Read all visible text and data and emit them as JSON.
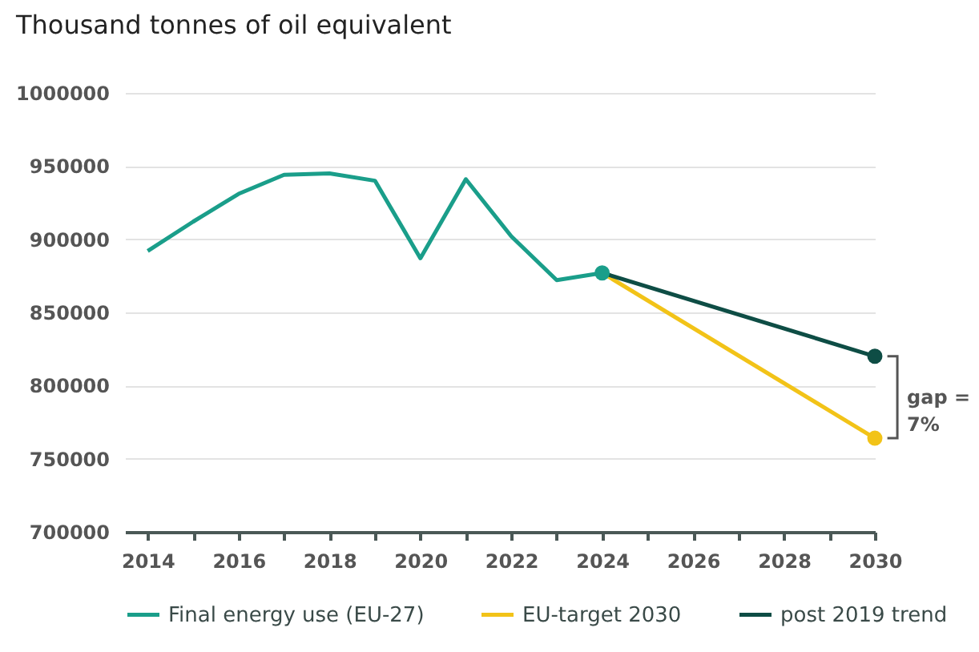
{
  "chart_data": {
    "type": "line",
    "title": "Thousand tonnes of oil equivalent",
    "series": [
      {
        "name": "Final energy use (EU-27)",
        "color": "#1a9e8a",
        "x": [
          2014,
          2015,
          2016,
          2017,
          2018,
          2019,
          2020,
          2021,
          2022,
          2023,
          2024
        ],
        "values": [
          892000,
          912000,
          931000,
          944000,
          945000,
          940000,
          887000,
          941000,
          902000,
          872000,
          877000
        ]
      },
      {
        "name": "EU-target 2030",
        "color": "#f2c318",
        "x": [
          2024,
          2030
        ],
        "values": [
          877000,
          764000
        ]
      },
      {
        "name": "post 2019 trend",
        "color": "#0e4d45",
        "x": [
          2024,
          2030
        ],
        "values": [
          877000,
          820000
        ]
      },
      {
        "type": "scatter",
        "color": "#1a9e8a",
        "marker": "circle",
        "x": [
          2024
        ],
        "values": [
          877000
        ]
      },
      {
        "type": "scatter",
        "color": "#f2c318",
        "marker": "circle",
        "x": [
          2030
        ],
        "values": [
          764000
        ]
      },
      {
        "type": "scatter",
        "color": "#0e4d45",
        "marker": "circle",
        "x": [
          2030
        ],
        "values": [
          820000
        ]
      }
    ],
    "xlim": [
      2013.5,
      2030
    ],
    "xticks": [
      2014,
      {
        "value": 2015,
        "label": null
      },
      2016,
      {
        "value": 2017,
        "label": null
      },
      2018,
      {
        "value": 2019,
        "label": null
      },
      2020,
      {
        "value": 2021,
        "label": null
      },
      2022,
      {
        "value": 2023,
        "label": null
      },
      2024,
      {
        "value": 2025,
        "label": null
      },
      2026,
      {
        "value": 2027,
        "label": null
      },
      2028,
      {
        "value": 2029,
        "label": null
      },
      2030
    ],
    "ylim": [
      700000,
      1000000
    ],
    "yticks": [
      700000,
      750000,
      800000,
      850000,
      900000,
      950000,
      1000000
    ],
    "grid": "y",
    "legend": "bottom",
    "annotations": [
      "gap = 7%"
    ]
  }
}
